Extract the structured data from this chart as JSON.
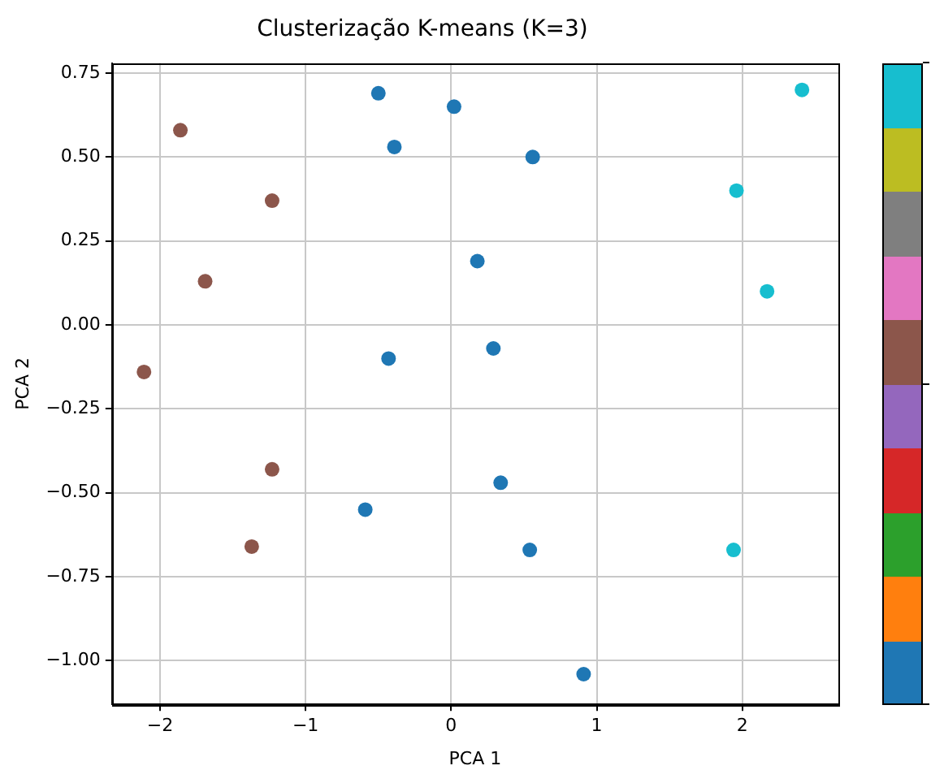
{
  "chart_data": {
    "type": "scatter",
    "title": "Clusterização K-means (K=3)",
    "xlabel": "PCA 1",
    "ylabel": "PCA 2",
    "x": [
      -0.5,
      0.02,
      -0.39,
      0.56,
      0.18,
      0.29,
      -0.43,
      0.34,
      -0.59,
      0.54,
      0.91,
      -1.86,
      -1.23,
      -1.69,
      -2.11,
      -1.23,
      -1.37,
      2.41,
      1.96,
      2.17,
      1.94
    ],
    "values": [
      0.69,
      0.65,
      0.53,
      0.5,
      0.19,
      -0.07,
      -0.1,
      -0.47,
      -0.55,
      -0.67,
      -1.04,
      0.58,
      0.37,
      0.13,
      -0.14,
      -0.43,
      -0.66,
      0.7,
      0.4,
      0.1,
      -0.67
    ],
    "colors": [
      "#1f77b4",
      "#1f77b4",
      "#1f77b4",
      "#1f77b4",
      "#1f77b4",
      "#1f77b4",
      "#1f77b4",
      "#1f77b4",
      "#1f77b4",
      "#1f77b4",
      "#1f77b4",
      "#8c564b",
      "#8c564b",
      "#8c564b",
      "#8c564b",
      "#8c564b",
      "#8c564b",
      "#17becf",
      "#17becf",
      "#17becf",
      "#17becf"
    ],
    "xlim": [
      -2.33,
      2.66
    ],
    "ylim": [
      -1.13,
      0.78
    ],
    "xticks": [
      {
        "value": -2,
        "label": "−2"
      },
      {
        "value": -1,
        "label": "−1"
      },
      0,
      1,
      2
    ],
    "yticks": [
      {
        "value": -1,
        "label": "−1.00"
      },
      {
        "value": -0.75,
        "label": "−0.75"
      },
      {
        "value": -0.5,
        "label": "−0.50"
      },
      {
        "value": -0.25,
        "label": "−0.25"
      },
      {
        "value": 0,
        "label": "0.00"
      },
      {
        "value": 0.25,
        "label": "0.25"
      },
      {
        "value": 0.5,
        "label": "0.50"
      },
      {
        "value": 0.75,
        "label": "0.75"
      }
    ],
    "grid": true,
    "marker": "circle"
  }
}
